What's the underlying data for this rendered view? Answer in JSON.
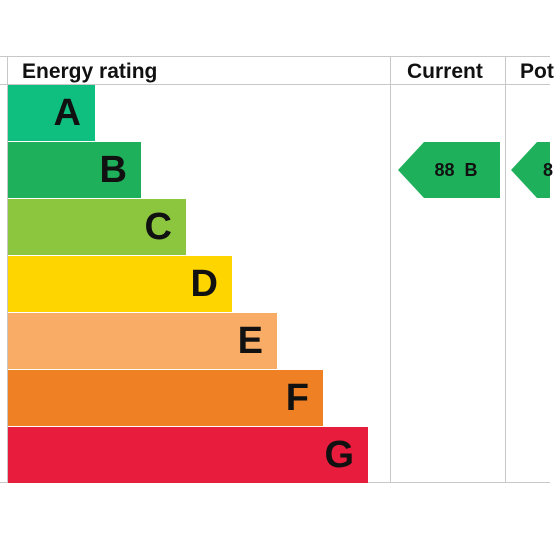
{
  "chart_data": {
    "type": "bar",
    "headers": {
      "rating": "Energy rating",
      "current": "Current",
      "potential": "Pot"
    },
    "bands": [
      {
        "letter": "A",
        "color": "#0fbf7f",
        "rank": 1
      },
      {
        "letter": "B",
        "color": "#1eb05a",
        "rank": 2
      },
      {
        "letter": "C",
        "color": "#8cc63f",
        "rank": 3
      },
      {
        "letter": "D",
        "color": "#ffd500",
        "rank": 4
      },
      {
        "letter": "E",
        "color": "#f9ac66",
        "rank": 5
      },
      {
        "letter": "F",
        "color": "#ef8023",
        "rank": 6
      },
      {
        "letter": "G",
        "color": "#e81c3c",
        "rank": 7
      }
    ],
    "current": {
      "score": 88,
      "band": "B",
      "label": "88  B",
      "color": "#1eb05a"
    },
    "potential": {
      "label": "8",
      "band": "B",
      "color": "#1eb05a"
    }
  }
}
